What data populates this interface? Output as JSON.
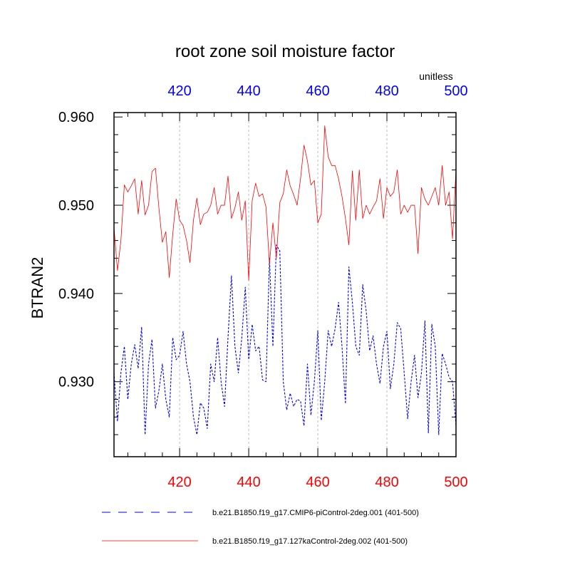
{
  "chart_data": {
    "type": "line",
    "title": "root zone soil moisture factor",
    "units": "unitless",
    "ylabel": "BTRAN2",
    "xlim": [
      401,
      500
    ],
    "ylim": [
      0.9215,
      0.9605
    ],
    "yticks": [
      0.93,
      0.94,
      0.95,
      0.96
    ],
    "ytick_labels": [
      "0.930",
      "0.940",
      "0.950",
      "0.960"
    ],
    "xticks": [
      420,
      440,
      460,
      480,
      500
    ],
    "xtick_labels": [
      "420",
      "440",
      "460",
      "480",
      "500"
    ],
    "bottom_axis_color": "#ff0000",
    "top_axis_color": "#0000ff",
    "grid_x": true,
    "series": [
      {
        "name": "b.e21.B1850.f19_g17.CMIP6-piControl-2deg.001 (401-500)",
        "color": "#0000ff",
        "style": "dashed",
        "values": [
          0.931,
          0.9255,
          0.931,
          0.934,
          0.928,
          0.932,
          0.9342,
          0.9315,
          0.9362,
          0.924,
          0.932,
          0.9348,
          0.927,
          0.929,
          0.932,
          0.928,
          0.926,
          0.935,
          0.9325,
          0.933,
          0.9357,
          0.932,
          0.93,
          0.926,
          0.924,
          0.9276,
          0.927,
          0.9247,
          0.932,
          0.93,
          0.935,
          0.93,
          0.9272,
          0.935,
          0.942,
          0.934,
          0.931,
          0.935,
          0.9407,
          0.9325,
          0.9365,
          0.9335,
          0.934,
          0.9302,
          0.93,
          0.944,
          0.934,
          0.9455,
          0.9448,
          0.93,
          0.9268,
          0.9287,
          0.9272,
          0.928,
          0.9278,
          0.925,
          0.932,
          0.9262,
          0.93,
          0.9358,
          0.9256,
          0.93,
          0.9358,
          0.934,
          0.936,
          0.939,
          0.934,
          0.9275,
          0.943,
          0.939,
          0.934,
          0.933,
          0.941,
          0.938,
          0.9335,
          0.9352,
          0.932,
          0.9298,
          0.934,
          0.9357,
          0.9292,
          0.932,
          0.9367,
          0.936,
          0.931,
          0.9258,
          0.93,
          0.933,
          0.9282,
          0.931,
          0.9369,
          0.9242,
          0.9365,
          0.934,
          0.924,
          0.9332,
          0.932,
          0.9305,
          0.93,
          0.925
        ]
      },
      {
        "name": "b.e21.B1850.f19_g17.127kaControl-2deg.002 (401-500)",
        "color": "#ff0000",
        "style": "solid",
        "values": [
          0.9475,
          0.9426,
          0.946,
          0.9523,
          0.9515,
          0.9522,
          0.953,
          0.949,
          0.9528,
          0.9489,
          0.95,
          0.9538,
          0.9542,
          0.9497,
          0.9458,
          0.947,
          0.9418,
          0.9467,
          0.9507,
          0.9483,
          0.9477,
          0.946,
          0.9435,
          0.9483,
          0.9508,
          0.9478,
          0.949,
          0.9492,
          0.95,
          0.952,
          0.949,
          0.95,
          0.95,
          0.9533,
          0.9485,
          0.9497,
          0.9515,
          0.9483,
          0.9505,
          0.9415,
          0.9505,
          0.9525,
          0.951,
          0.9513,
          0.9498,
          0.9433,
          0.948,
          0.944,
          0.9503,
          0.9513,
          0.954,
          0.9522,
          0.9512,
          0.95,
          0.953,
          0.9568,
          0.955,
          0.9523,
          0.9528,
          0.948,
          0.949,
          0.959,
          0.9555,
          0.9545,
          0.9545,
          0.953,
          0.951,
          0.9485,
          0.9455,
          0.9539,
          0.9483,
          0.954,
          0.9485,
          0.95,
          0.949,
          0.9498,
          0.9505,
          0.953,
          0.9485,
          0.952,
          0.951,
          0.9515,
          0.954,
          0.949,
          0.95,
          0.9492,
          0.95,
          0.95,
          0.9445,
          0.952,
          0.9507,
          0.95,
          0.951,
          0.952,
          0.95,
          0.9545,
          0.95,
          0.9515,
          0.9462,
          0.954
        ]
      }
    ]
  }
}
